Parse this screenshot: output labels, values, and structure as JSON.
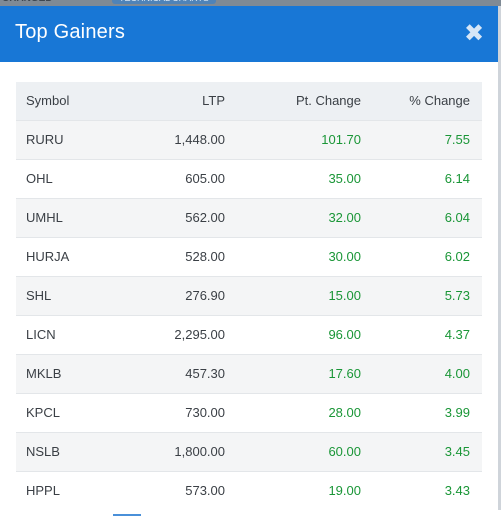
{
  "modal": {
    "title": "Top Gainers",
    "close_glyph": "✖",
    "accent_color": "#1877d6",
    "positive_color": "#1a9637"
  },
  "table": {
    "columns": [
      "Symbol",
      "LTP",
      "Pt. Change",
      "% Change"
    ],
    "rows": [
      {
        "symbol": "RURU",
        "ltp": "1,448.00",
        "pt_change": "101.70",
        "pct_change": "7.55"
      },
      {
        "symbol": "OHL",
        "ltp": "605.00",
        "pt_change": "35.00",
        "pct_change": "6.14"
      },
      {
        "symbol": "UMHL",
        "ltp": "562.00",
        "pt_change": "32.00",
        "pct_change": "6.04"
      },
      {
        "symbol": "HURJA",
        "ltp": "528.00",
        "pt_change": "30.00",
        "pct_change": "6.02"
      },
      {
        "symbol": "SHL",
        "ltp": "276.90",
        "pt_change": "15.00",
        "pct_change": "5.73"
      },
      {
        "symbol": "LICN",
        "ltp": "2,295.00",
        "pt_change": "96.00",
        "pct_change": "4.37"
      },
      {
        "symbol": "MKLB",
        "ltp": "457.30",
        "pt_change": "17.60",
        "pct_change": "4.00"
      },
      {
        "symbol": "KPCL",
        "ltp": "730.00",
        "pt_change": "28.00",
        "pct_change": "3.99"
      },
      {
        "symbol": "NSLB",
        "ltp": "1,800.00",
        "pt_change": "60.00",
        "pct_change": "3.45"
      },
      {
        "symbol": "HPPL",
        "ltp": "573.00",
        "pt_change": "19.00",
        "pct_change": "3.43"
      }
    ]
  }
}
